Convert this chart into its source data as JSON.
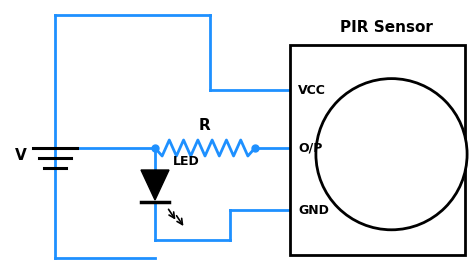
{
  "wire_color": "#1E90FF",
  "wire_lw": 2.0,
  "component_color": "#000000",
  "bg_color": "#FFFFFF",
  "title": "PIR Sensor",
  "vcc_label": "VCC",
  "op_label": "O/P",
  "gnd_label": "GND",
  "r_label": "R",
  "led_label": "LED",
  "v_label": "V",
  "figsize": [
    4.74,
    2.74
  ],
  "dpi": 100
}
